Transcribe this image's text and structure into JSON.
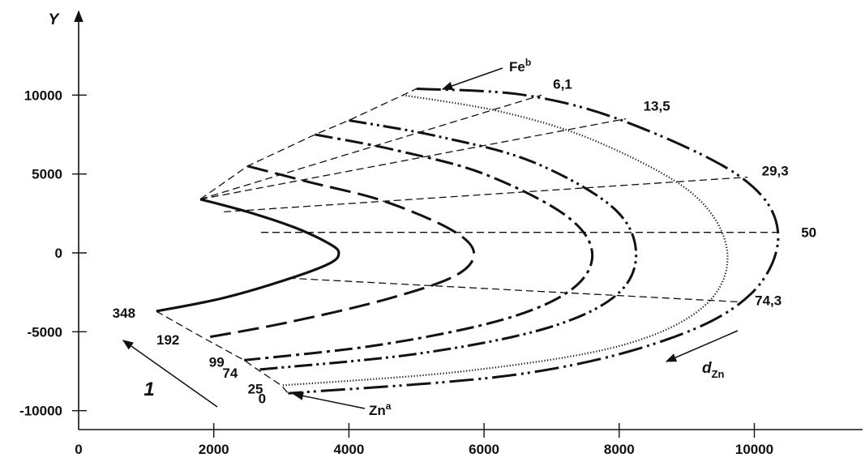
{
  "chart_data": {
    "type": "line",
    "ylabel": "Y",
    "xlim": [
      0,
      11600
    ],
    "ylim": [
      -11000,
      11000
    ],
    "x_ticks": [
      0,
      2000,
      4000,
      6000,
      8000,
      10000
    ],
    "y_ticks": [
      10000,
      5000,
      0,
      -5000,
      -10000
    ],
    "x_tick_labels": [
      "0",
      "2000",
      "4000",
      "6000",
      "8000",
      "10000"
    ],
    "y_tick_labels": [
      "10000",
      "5000",
      "0",
      "-5000",
      "-10000"
    ],
    "series": [
      {
        "label": "348",
        "style": "solid",
        "x": [
          1800,
          2500,
          3200,
          3700,
          3850,
          3700,
          3000,
          2100,
          1150
        ],
        "y": [
          3400,
          2600,
          1600,
          600,
          0,
          -700,
          -1800,
          -2900,
          -3700
        ]
      },
      {
        "label": "192",
        "style": "long-dash",
        "x": [
          2500,
          3400,
          4500,
          5500,
          5850,
          5550,
          4500,
          3100,
          1850
        ],
        "y": [
          5500,
          4500,
          3300,
          1500,
          0,
          -1500,
          -3000,
          -4400,
          -5400
        ]
      },
      {
        "label": "99",
        "style": "dash-dot",
        "x": [
          3500,
          4700,
          6000,
          7200,
          7600,
          7300,
          6300,
          4500,
          2450
        ],
        "y": [
          7500,
          6500,
          5000,
          2400,
          0,
          -2300,
          -4200,
          -5800,
          -6800
        ]
      },
      {
        "label": "74",
        "style": "dash-dot-dot",
        "x": [
          4000,
          5300,
          6700,
          7900,
          8250,
          7950,
          6900,
          5000,
          2650
        ],
        "y": [
          8400,
          7400,
          5800,
          2900,
          0,
          -2700,
          -4800,
          -6400,
          -7400
        ]
      },
      {
        "label": "25",
        "style": "dotted",
        "x": [
          4800,
          6300,
          7700,
          9100,
          9600,
          9250,
          8000,
          5700,
          3000
        ],
        "y": [
          10000,
          8900,
          7000,
          3700,
          0,
          -3400,
          -5900,
          -7500,
          -8400
        ]
      },
      {
        "label": "0",
        "style": "dash-dot-dot-long",
        "x": [
          5000,
          6600,
          8100,
          9800,
          10350,
          9950,
          8700,
          6500,
          3100
        ],
        "y": [
          10400,
          10000,
          8300,
          4800,
          1300,
          -2600,
          -5500,
          -7700,
          -8900
        ]
      }
    ],
    "radial_lines": [
      {
        "label": "6,1",
        "x": [
          1800,
          6850
        ],
        "y": [
          3400,
          10000
        ]
      },
      {
        "label": "13,5",
        "x": [
          1800,
          8100
        ],
        "y": [
          3400,
          8500
        ]
      },
      {
        "label": "29,3",
        "x": [
          2150,
          9900
        ],
        "y": [
          2600,
          4800
        ]
      },
      {
        "label": "50",
        "x": [
          2700,
          10350
        ],
        "y": [
          1300,
          1300
        ]
      },
      {
        "label": "74,3",
        "x": [
          3100,
          9750
        ],
        "y": [
          -1600,
          -3100
        ]
      }
    ],
    "annotations": {
      "fe": "Fe",
      "fe_sup": "b",
      "zn": "Zn",
      "zn_sup": "a",
      "d_zn": "d",
      "d_zn_sub": "Zn",
      "arrow_one": "1"
    }
  }
}
